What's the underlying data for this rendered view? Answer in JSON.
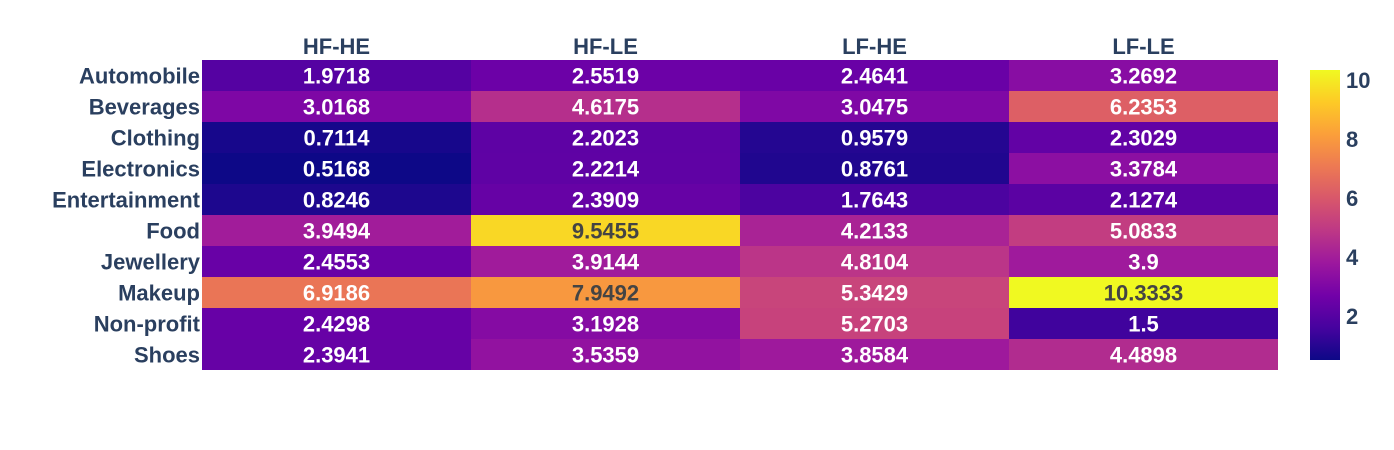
{
  "chart_data": {
    "type": "heatmap",
    "title": "",
    "xlabel": "",
    "ylabel": "",
    "x_categories": [
      "HF-HE",
      "HF-LE",
      "LF-HE",
      "LF-LE"
    ],
    "y_categories": [
      "Automobile",
      "Beverages",
      "Clothing",
      "Electronics",
      "Entertainment",
      "Food",
      "Jewellery",
      "Makeup",
      "Non-profit",
      "Shoes"
    ],
    "values": [
      [
        1.9718,
        2.5519,
        2.4641,
        3.2692
      ],
      [
        3.0168,
        4.6175,
        3.0475,
        6.2353
      ],
      [
        0.7114,
        2.2023,
        0.9579,
        2.3029
      ],
      [
        0.5168,
        2.2214,
        0.8761,
        3.3784
      ],
      [
        0.8246,
        2.3909,
        1.7643,
        2.1274
      ],
      [
        3.9494,
        9.5455,
        4.2133,
        5.0833
      ],
      [
        2.4553,
        3.9144,
        4.8104,
        3.9
      ],
      [
        6.9186,
        7.9492,
        5.3429,
        10.3333
      ],
      [
        2.4298,
        3.1928,
        5.2703,
        1.5
      ],
      [
        2.3941,
        3.5359,
        3.8584,
        4.4898
      ]
    ],
    "text": [
      [
        "1.9718",
        "2.5519",
        "2.4641",
        "3.2692"
      ],
      [
        "3.0168",
        "4.6175",
        "3.0475",
        "6.2353"
      ],
      [
        "0.7114",
        "2.2023",
        "0.9579",
        "2.3029"
      ],
      [
        "0.5168",
        "2.2214",
        "0.8761",
        "3.3784"
      ],
      [
        "0.8246",
        "2.3909",
        "1.7643",
        "2.1274"
      ],
      [
        "3.9494",
        "9.5455",
        "4.2133",
        "5.0833"
      ],
      [
        "2.4553",
        "3.9144",
        "4.8104",
        "3.9"
      ],
      [
        "6.9186",
        "7.9492",
        "5.3429",
        "10.3333"
      ],
      [
        "2.4298",
        "3.1928",
        "5.2703",
        "1.5"
      ],
      [
        "2.3941",
        "3.5359",
        "3.8584",
        "4.4898"
      ]
    ],
    "colorscale": "plasma",
    "zmin": 0.5168,
    "zmax": 10.3333,
    "colorbar_ticks": [
      2,
      4,
      6,
      8,
      10
    ],
    "colorbar_tick_labels": [
      "2",
      "4",
      "6",
      "8",
      "10"
    ],
    "x_axis_side": "top",
    "legend": "colorbar-right"
  },
  "colors": {
    "axis_text": "#2a3f5f",
    "light_text": "#ffffff",
    "dark_text": "#444444"
  }
}
